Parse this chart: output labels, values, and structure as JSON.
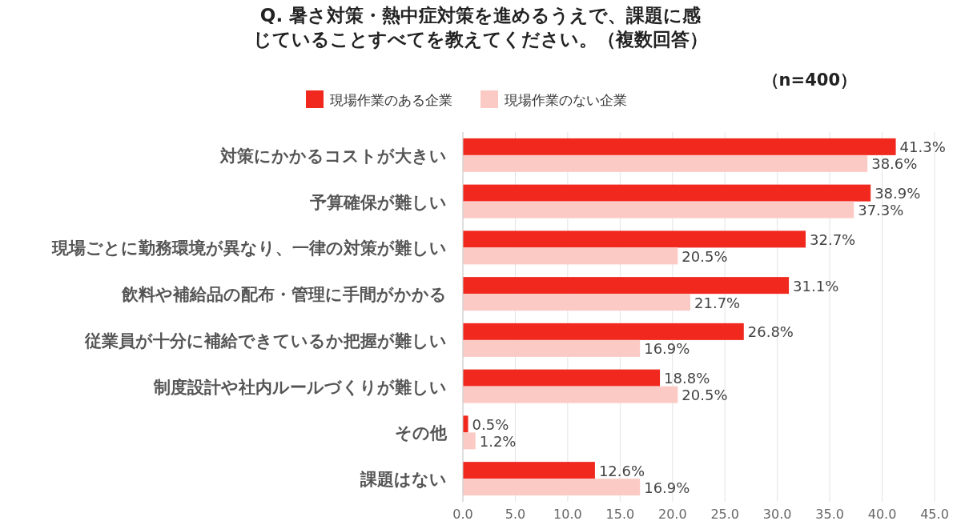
{
  "chart_data": {
    "type": "bar",
    "orientation": "horizontal",
    "title": "Q. 暑さ対策・熱中症対策を進めるうえで、課題に感じていることすべてを教えてください。（複数回答）",
    "annotations": [
      "（n=400）"
    ],
    "categories": [
      "対策にかかるコストが大きい",
      "予算確保が難しい",
      "現場ごとに勤務環境が異なり、一律の対策が難しい",
      "飲料や補給品の配布・管理に手間がかかる",
      "従業員が十分に補給できているか把握が難しい",
      "制度設計や社内ルールづくりが難しい",
      "その他",
      "課題はない"
    ],
    "series": [
      {
        "name": "現場作業のある企業",
        "color": "#f0281e",
        "values": [
          41.3,
          38.9,
          32.7,
          31.1,
          26.8,
          18.8,
          0.5,
          12.6
        ],
        "value_labels": [
          "41.3%",
          "38.9%",
          "32.7%",
          "31.1%",
          "26.8%",
          "18.8%",
          "0.5%",
          "12.6%"
        ]
      },
      {
        "name": "現場作業のない企業",
        "color": "#fccac5",
        "values": [
          38.6,
          37.3,
          20.5,
          21.7,
          16.9,
          20.5,
          1.2,
          16.9
        ],
        "value_labels": [
          "38.6%",
          "37.3%",
          "20.5%",
          "21.7%",
          "16.9%",
          "20.5%",
          "1.2%",
          "16.9%"
        ]
      }
    ],
    "xlim": [
      0,
      45
    ],
    "xticks": [
      {
        "value": 0,
        "label": "0.0"
      },
      {
        "value": 5,
        "label": "5.0"
      },
      {
        "value": 10,
        "label": "10.0"
      },
      {
        "value": 15,
        "label": "15.0"
      },
      {
        "value": 20,
        "label": "20.0"
      },
      {
        "value": 25,
        "label": "25.0"
      },
      {
        "value": 30,
        "label": "30.0"
      },
      {
        "value": 35,
        "label": "35.0"
      },
      {
        "value": 40,
        "label": "40.0"
      },
      {
        "value": 45,
        "label": "45.0"
      }
    ],
    "grid": "x",
    "legend": "top"
  }
}
